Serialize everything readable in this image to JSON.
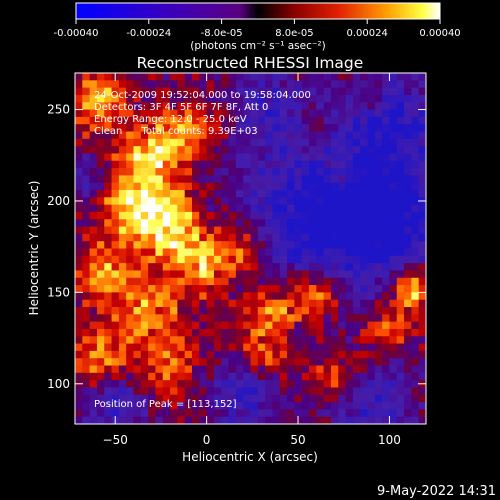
{
  "colorbar": {
    "ticks": [
      "-0.00040",
      "-0.00024",
      "-8.0e-05",
      "8.0e-05",
      "0.00024",
      "0.00040"
    ],
    "unit_label": "(photons cm⁻² s⁻¹ asec⁻²)"
  },
  "chart_data": {
    "type": "heatmap",
    "title": "Reconstructed RHESSI Image",
    "xlabel": "Heliocentric X (arcsec)",
    "ylabel": "Heliocentric Y (arcsec)",
    "xlim": [
      -72,
      120
    ],
    "ylim": [
      78,
      270
    ],
    "x_ticks": [
      -50,
      0,
      50,
      100
    ],
    "y_ticks": [
      100,
      150,
      200,
      250
    ],
    "zlim": [
      -0.0004,
      0.0004
    ],
    "colormap": "rainbow-blue-purple-red-yellow-white",
    "annotations": [
      "24-Oct-2009 19:52:04.000 to 19:58:04.000",
      "Detectors: 3F 4F 5F 6F 7F 8F, Att 0",
      "Energy Range: 12.0 - 25.0 keV",
      "Clean      Total counts: 9.39E+03",
      "Position of Peak = [113,152]"
    ],
    "peak": [
      113,
      152
    ]
  },
  "footer": {
    "timestamp": "9-May-2022 14:31"
  }
}
